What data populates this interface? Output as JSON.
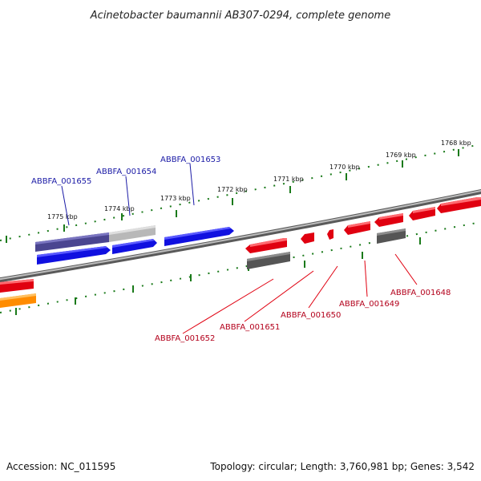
{
  "title": "Acinetobacter baumannii AB307-0294, complete genome",
  "kbp_ticks": [
    "1775 kbp",
    "1774 kbp",
    "1773 kbp",
    "1772 kbp",
    "1771 kbp",
    "1770 kbp",
    "1769 kbp",
    "1768 kbp"
  ],
  "genes_blue": [
    "ABBFA_001655",
    "ABBFA_001654",
    "ABBFA_001653"
  ],
  "genes_red": [
    "ABBFA_001652",
    "ABBFA_001651",
    "ABBFA_001650",
    "ABBFA_001649",
    "ABBFA_001648"
  ],
  "footer": {
    "accession": "Accession: NC_011595",
    "summary": "Topology: circular; Length: 3,760,981 bp; Genes: 3,542"
  },
  "colors": {
    "blue": "#1010e0",
    "navy": "#4a4590",
    "gray_light": "#b8b8b8",
    "gray_dark": "#555555",
    "red": "#e00010",
    "orange": "#ff8c00",
    "tick_green": "#1a7a1a",
    "backbone": "#888888"
  }
}
